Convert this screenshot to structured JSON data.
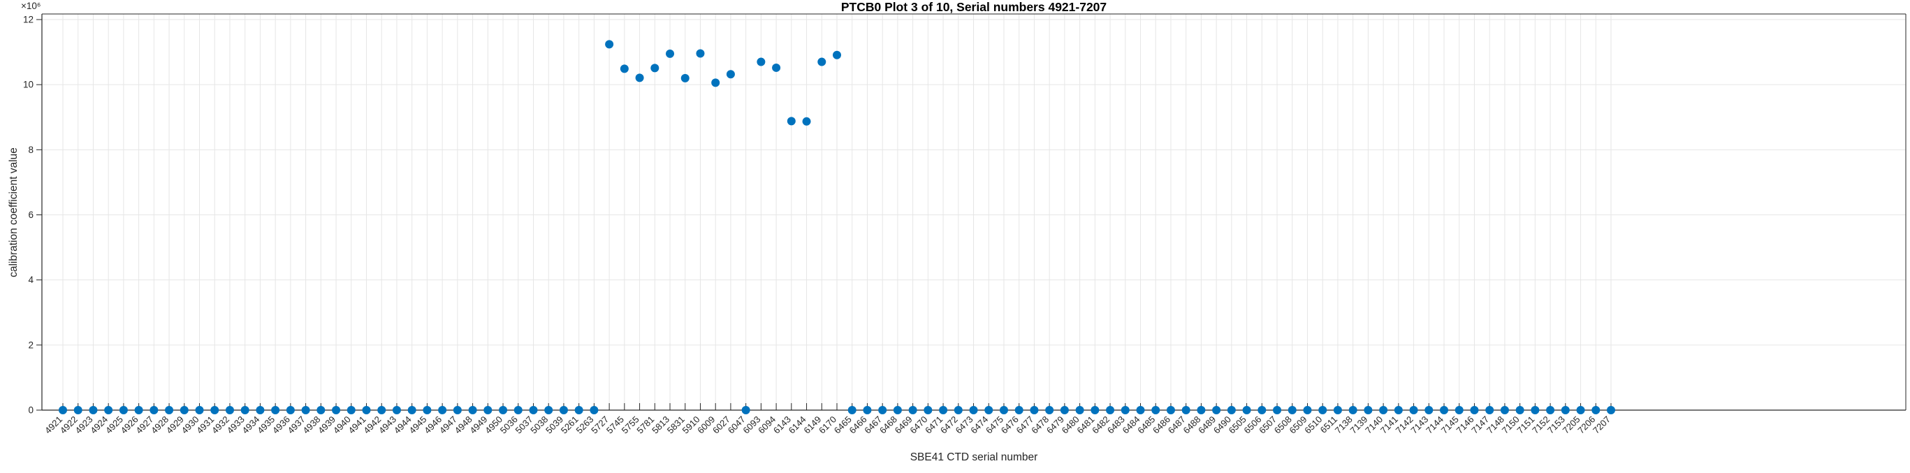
{
  "chart_data": {
    "type": "scatter",
    "title": "PTCB0 Plot 3 of 10, Serial numbers 4921-7207",
    "xlabel": "SBE41 CTD serial number",
    "ylabel": "calibration coefficient value",
    "y_axis_multiplier": "×10⁶",
    "ylim": [
      0,
      12000000
    ],
    "y_ticks": [
      0,
      2,
      4,
      6,
      8,
      10,
      12
    ],
    "grid": true,
    "legend": "none",
    "marker_color": "#0072BD",
    "grid_color": "#e6e6e6",
    "axis_color": "#262626",
    "serials": [
      "4921",
      "4922",
      "4923",
      "4924",
      "4925",
      "4926",
      "4927",
      "4928",
      "4929",
      "4930",
      "4931",
      "4932",
      "4933",
      "4934",
      "4935",
      "4936",
      "4937",
      "4938",
      "4939",
      "4940",
      "4941",
      "4942",
      "4943",
      "4944",
      "4945",
      "4946",
      "4947",
      "4948",
      "4949",
      "4950",
      "5036",
      "5037",
      "5038",
      "5039",
      "5261",
      "5263",
      "5727",
      "5745",
      "5755",
      "5781",
      "5813",
      "5831",
      "5910",
      "6009",
      "6027",
      "6047",
      "6093",
      "6094",
      "6143",
      "6144",
      "6149",
      "6170",
      "6465",
      "6466",
      "6467",
      "6468",
      "6469",
      "6470",
      "6471",
      "6472",
      "6473",
      "6474",
      "6475",
      "6476",
      "6477",
      "6478",
      "6479",
      "6480",
      "6481",
      "6482",
      "6483",
      "6484",
      "6485",
      "6486",
      "6487",
      "6488",
      "6489",
      "6490",
      "6505",
      "6506",
      "6507",
      "6508",
      "6509",
      "6510",
      "6511",
      "7138",
      "7139",
      "7140",
      "7141",
      "7142",
      "7143",
      "7144",
      "7145",
      "7146",
      "7147",
      "7148",
      "7150",
      "7151",
      "7152",
      "7153",
      "7205",
      "7206",
      "7207"
    ],
    "values": [
      0,
      0,
      0,
      0,
      0,
      0,
      0,
      0,
      0,
      0,
      0,
      0,
      0,
      0,
      0,
      0,
      0,
      0,
      0,
      0,
      0,
      0,
      0,
      0,
      0,
      0,
      0,
      0,
      0,
      0,
      0,
      0,
      0,
      0,
      0,
      0,
      11240000,
      10490000,
      10210000,
      10510000,
      10950000,
      10200000,
      10960000,
      10060000,
      10320000,
      0,
      10700000,
      10520000,
      8880000,
      8870000,
      10700000,
      10910000,
      0,
      0,
      0,
      0,
      0,
      0,
      0,
      0,
      0,
      0,
      0,
      0,
      0,
      0,
      0,
      0,
      0,
      0,
      0,
      0,
      0,
      0,
      0,
      0,
      0,
      0,
      0,
      0,
      0,
      0,
      0,
      0,
      0,
      0,
      0,
      0,
      0,
      0,
      0,
      0,
      0,
      0,
      0,
      0,
      0,
      0,
      0,
      0,
      0,
      0,
      0
    ]
  }
}
